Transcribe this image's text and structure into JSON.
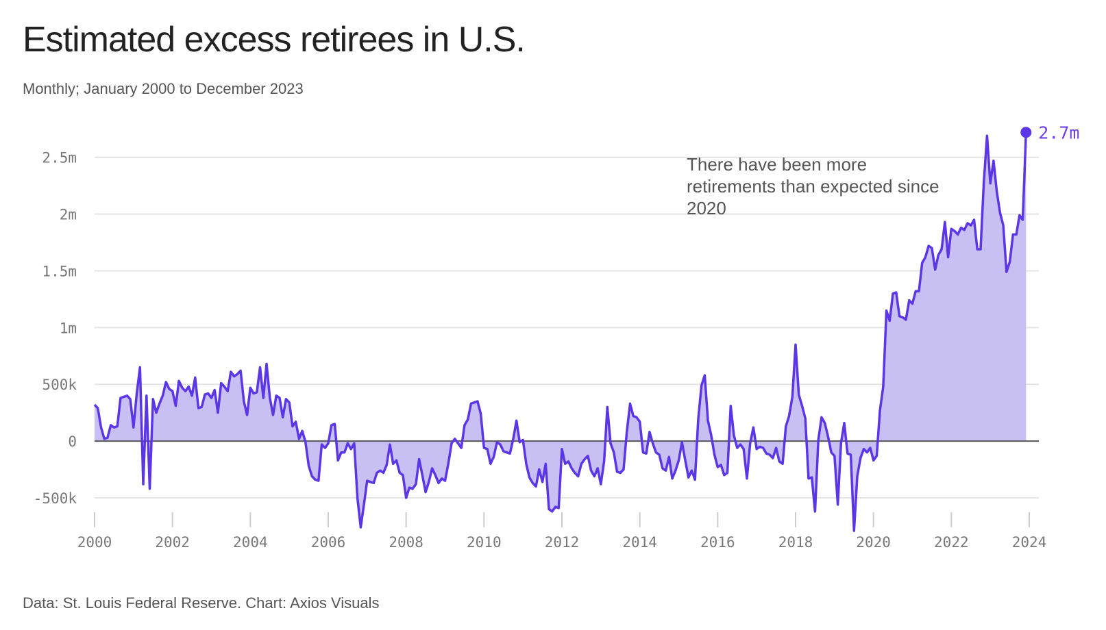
{
  "title": "Estimated excess retirees in U.S.",
  "subtitle": "Monthly; January 2000 to December 2023",
  "footer": "Data: St. Louis Federal Reserve. Chart: Axios Visuals",
  "colors": {
    "line": "#5b36e6",
    "fill": "#c8bff2",
    "grid": "#e4e4e4",
    "zero": "#555555",
    "text": "#777777"
  },
  "chart_data": {
    "type": "area",
    "title": "Estimated excess retirees in U.S.",
    "subtitle": "Monthly; January 2000 to December 2023",
    "series": [
      {
        "values_unit": "retirees",
        "start": "2000-01",
        "frequency": "monthly"
      }
    ],
    "x_start_year": 2000,
    "ylim": [
      -850000,
      2800000
    ],
    "yticks": [
      -500000,
      0,
      500000,
      1000000,
      1500000,
      2000000,
      2500000
    ],
    "ytick_labels": [
      "-500k",
      "0",
      "500k",
      "1m",
      "1.5m",
      "2m",
      "2.5m"
    ],
    "xticks": [
      2000,
      2002,
      2004,
      2006,
      2008,
      2010,
      2012,
      2014,
      2016,
      2018,
      2020,
      2022,
      2024
    ],
    "xtick_labels": [
      "2000",
      "2002",
      "2004",
      "2006",
      "2008",
      "2010",
      "2012",
      "2014",
      "2016",
      "2018",
      "2020",
      "2022",
      "2024"
    ],
    "grid": true,
    "annotation": {
      "lines": [
        "There have been more",
        "retirements than expected since",
        "2020"
      ]
    },
    "end_label": "2.7m",
    "values": [
      320000,
      290000,
      120000,
      20000,
      30000,
      140000,
      120000,
      130000,
      380000,
      390000,
      400000,
      370000,
      120000,
      420000,
      650000,
      -380000,
      400000,
      -420000,
      370000,
      250000,
      330000,
      400000,
      520000,
      460000,
      440000,
      310000,
      530000,
      470000,
      440000,
      480000,
      400000,
      560000,
      290000,
      300000,
      410000,
      420000,
      380000,
      450000,
      250000,
      510000,
      480000,
      440000,
      610000,
      570000,
      590000,
      620000,
      350000,
      230000,
      470000,
      420000,
      430000,
      650000,
      380000,
      680000,
      380000,
      230000,
      400000,
      380000,
      210000,
      370000,
      340000,
      130000,
      170000,
      20000,
      90000,
      -10000,
      -220000,
      -310000,
      -340000,
      -350000,
      -30000,
      -60000,
      -20000,
      140000,
      150000,
      -170000,
      -100000,
      -100000,
      -20000,
      -70000,
      -20000,
      -500000,
      -760000,
      -560000,
      -350000,
      -360000,
      -370000,
      -280000,
      -260000,
      -280000,
      -210000,
      -30000,
      -200000,
      -170000,
      -280000,
      -300000,
      -500000,
      -410000,
      -420000,
      -380000,
      -160000,
      -300000,
      -450000,
      -360000,
      -240000,
      -300000,
      -370000,
      -330000,
      -350000,
      -200000,
      -20000,
      20000,
      -20000,
      -60000,
      140000,
      190000,
      330000,
      340000,
      350000,
      240000,
      -60000,
      -70000,
      -200000,
      -140000,
      -10000,
      -30000,
      -90000,
      -100000,
      -110000,
      20000,
      180000,
      -10000,
      10000,
      -200000,
      -320000,
      -370000,
      -400000,
      -250000,
      -360000,
      -200000,
      -600000,
      -620000,
      -580000,
      -590000,
      -70000,
      -200000,
      -180000,
      -240000,
      -280000,
      -310000,
      -200000,
      -160000,
      -130000,
      -260000,
      -310000,
      -240000,
      -380000,
      -180000,
      300000,
      -20000,
      -100000,
      -270000,
      -280000,
      -250000,
      80000,
      330000,
      220000,
      210000,
      170000,
      -100000,
      -110000,
      80000,
      -20000,
      -100000,
      -120000,
      -240000,
      -260000,
      -140000,
      -330000,
      -260000,
      -170000,
      -10000,
      -170000,
      -320000,
      -260000,
      -340000,
      190000,
      490000,
      580000,
      180000,
      50000,
      -120000,
      -230000,
      -210000,
      -300000,
      -280000,
      310000,
      50000,
      -60000,
      -30000,
      -70000,
      -330000,
      -20000,
      120000,
      -70000,
      -50000,
      -60000,
      -110000,
      -120000,
      -150000,
      -60000,
      -180000,
      -200000,
      130000,
      220000,
      390000,
      850000,
      410000,
      310000,
      200000,
      -330000,
      -320000,
      -620000,
      10000,
      210000,
      160000,
      40000,
      -100000,
      -130000,
      -560000,
      -20000,
      160000,
      -110000,
      -120000,
      -790000,
      -310000,
      -150000,
      -70000,
      -100000,
      -60000,
      -170000,
      -130000,
      270000,
      480000,
      1150000,
      1060000,
      1300000,
      1310000,
      1100000,
      1090000,
      1070000,
      1240000,
      1210000,
      1320000,
      1320000,
      1570000,
      1620000,
      1720000,
      1700000,
      1510000,
      1640000,
      1690000,
      1930000,
      1620000,
      1870000,
      1850000,
      1820000,
      1880000,
      1860000,
      1920000,
      1900000,
      1950000,
      1690000,
      1690000,
      2280000,
      2690000,
      2270000,
      2470000,
      2200000,
      2010000,
      1900000,
      1490000,
      1580000,
      1820000,
      1820000,
      1990000,
      1950000,
      2720000
    ]
  }
}
